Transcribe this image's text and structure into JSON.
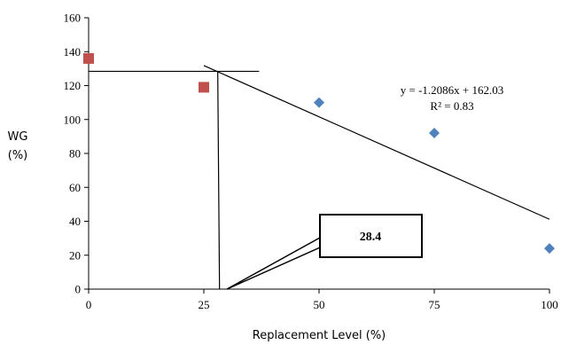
{
  "chart_data": {
    "type": "scatter",
    "xlabel": "Replacement Level (%)",
    "ylabel_line1": "WG",
    "ylabel_line2": "(%)",
    "xlim": [
      0,
      100
    ],
    "ylim": [
      0,
      160
    ],
    "x_ticks": [
      0,
      25,
      50,
      75,
      100
    ],
    "y_ticks": [
      0,
      20,
      40,
      60,
      80,
      100,
      120,
      140,
      160
    ],
    "series": [
      {
        "marker": "square",
        "color": "#C0504D",
        "points": [
          [
            0,
            136
          ],
          [
            25,
            119
          ]
        ]
      },
      {
        "marker": "diamond",
        "color": "#4F81BD",
        "points": [
          [
            50,
            110
          ],
          [
            75,
            92
          ],
          [
            100,
            24
          ]
        ]
      }
    ],
    "trendline": {
      "x_start": 25,
      "x_end": 100,
      "color": "#000000"
    },
    "equation": "y = -1.2086x + 162.03",
    "r_squared": "R² = 0.83",
    "plateau": {
      "y": 128.4,
      "x_start": 0,
      "x_end": 37
    },
    "breakpoint": {
      "x": 28.4,
      "label": "28.4"
    }
  }
}
